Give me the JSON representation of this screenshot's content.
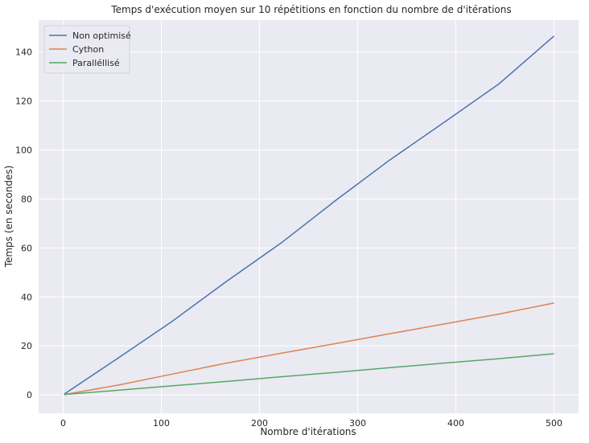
{
  "chart_data": {
    "type": "line",
    "title": "Temps d'exécution moyen sur 10 répétitions en fonction du nombre de d'itérations",
    "xlabel": "Nombre d'itérations",
    "ylabel": "Temps (en secondes)",
    "xlim": [
      -25,
      525
    ],
    "ylim": [
      -7.5,
      153
    ],
    "xticks": [
      0,
      100,
      200,
      300,
      400,
      500
    ],
    "yticks": [
      0,
      20,
      40,
      60,
      80,
      100,
      120,
      140
    ],
    "grid": true,
    "legend_position": "upper-left",
    "background": "#EAEAF2",
    "series": [
      {
        "name": "Non optimisé",
        "color": "#4C72B0",
        "x": [
          1,
          56,
          111,
          167,
          222,
          278,
          333,
          389,
          444,
          500
        ],
        "y": [
          0.3,
          15,
          30,
          46.5,
          62,
          79.5,
          96,
          111.5,
          127,
          146.5
        ]
      },
      {
        "name": "Cython",
        "color": "#DD8452",
        "x": [
          1,
          56,
          111,
          167,
          222,
          278,
          333,
          389,
          444,
          500
        ],
        "y": [
          0.1,
          4,
          8.5,
          13,
          17,
          21,
          25,
          29,
          33,
          37.5
        ]
      },
      {
        "name": "Paralléllisé",
        "color": "#55A868",
        "x": [
          1,
          56,
          111,
          167,
          222,
          278,
          333,
          389,
          444,
          500
        ],
        "y": [
          0.1,
          1.9,
          3.7,
          5.5,
          7.4,
          9.2,
          11.1,
          13,
          14.8,
          16.8
        ]
      }
    ]
  }
}
